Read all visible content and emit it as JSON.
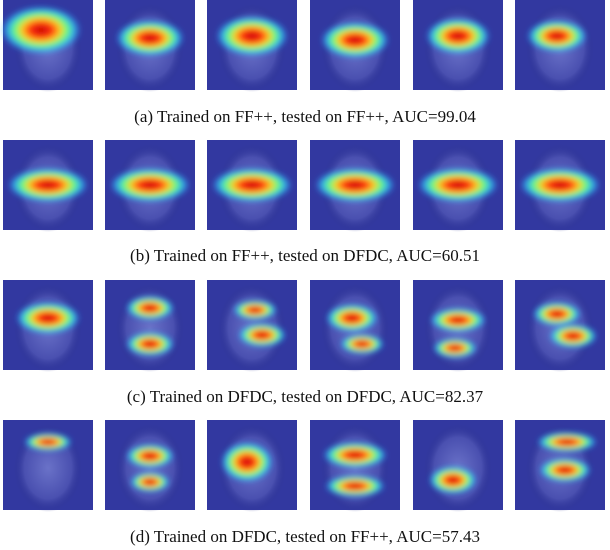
{
  "captions": [
    "(a) Trained on FF++, tested on FF++, AUC=99.04",
    "(b) Trained on FF++, tested on DFDC, AUC=60.51",
    "(c) Trained on DFDC, tested on DFDC, AUC=82.37",
    "(d) Trained on DFDC, tested on FF++, AUC=57.43"
  ]
}
